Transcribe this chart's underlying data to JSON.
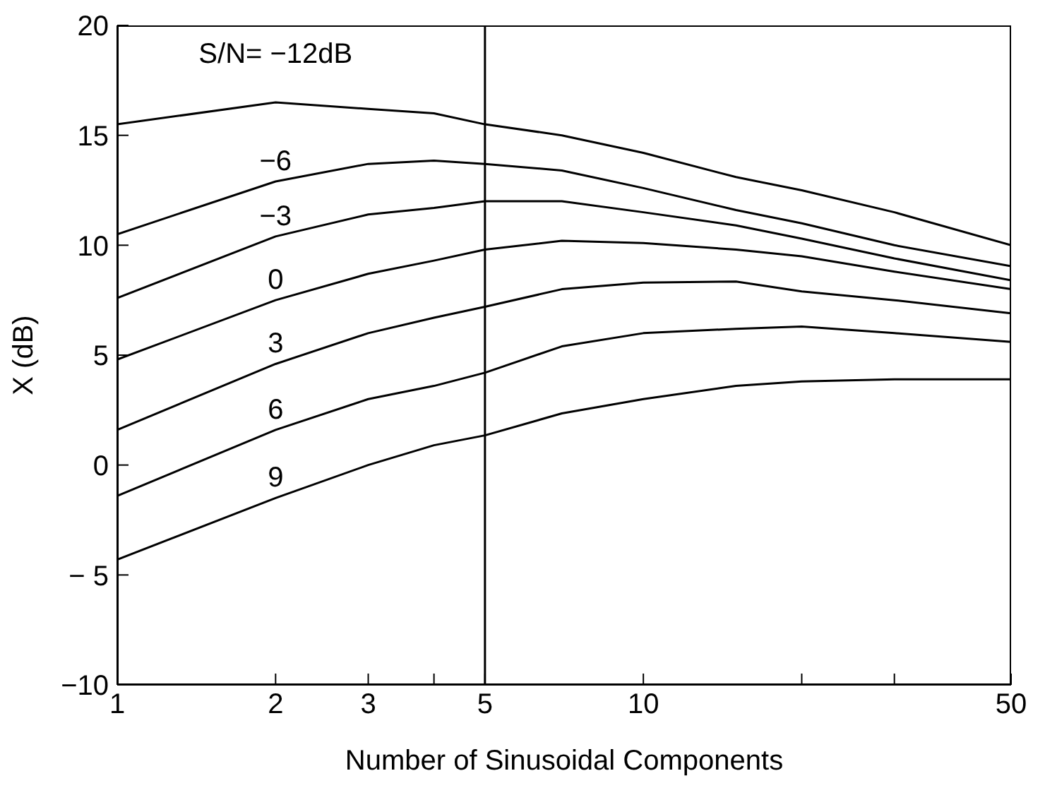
{
  "chart_data": {
    "type": "line",
    "xlabel": "Number of Sinusoidal Components",
    "ylabel": "X (dB)",
    "log": "x",
    "xlim": [
      1,
      50
    ],
    "xticks": [
      1,
      2,
      3,
      {
        "value": 4,
        "label": null
      },
      5,
      10,
      {
        "value": 20,
        "label": null
      },
      {
        "value": 30,
        "label": null
      },
      50
    ],
    "ylim": [
      -10,
      20
    ],
    "yticks": [
      {
        "value": -10,
        "label": "−10"
      },
      {
        "value": -5,
        "label": "− 5"
      },
      0,
      5,
      10,
      15,
      20
    ],
    "marker": "none",
    "line_style": "solid",
    "x": [
      1,
      2,
      3,
      4,
      5,
      7,
      10,
      15,
      20,
      30,
      50
    ],
    "ref_lines": [
      {
        "axis": "x",
        "value": 5,
        "color": "#000000"
      }
    ],
    "series": [
      {
        "name": "S/N= −12dB",
        "color": "#000000",
        "values": [
          15.5,
          16.5,
          16.2,
          16.0,
          15.5,
          15.0,
          14.2,
          13.1,
          12.5,
          11.5,
          10.0
        ]
      },
      {
        "name": "−6",
        "color": "#000000",
        "values": [
          10.5,
          12.9,
          13.7,
          13.85,
          13.7,
          13.4,
          12.6,
          11.6,
          11.0,
          10.0,
          9.05
        ]
      },
      {
        "name": "−3",
        "color": "#000000",
        "values": [
          7.6,
          10.4,
          11.4,
          11.7,
          12.0,
          12.0,
          11.5,
          10.9,
          10.3,
          9.4,
          8.4
        ]
      },
      {
        "name": "0",
        "color": "#000000",
        "values": [
          4.8,
          7.5,
          8.7,
          9.3,
          9.8,
          10.2,
          10.1,
          9.8,
          9.5,
          8.8,
          8.0
        ]
      },
      {
        "name": "3",
        "color": "#000000",
        "values": [
          1.6,
          4.6,
          6.0,
          6.7,
          7.2,
          8.0,
          8.3,
          8.35,
          7.9,
          7.5,
          6.9
        ]
      },
      {
        "name": "6",
        "color": "#000000",
        "values": [
          -1.4,
          1.6,
          3.0,
          3.6,
          4.2,
          5.4,
          6.0,
          6.2,
          6.3,
          6.0,
          5.6
        ]
      },
      {
        "name": "9",
        "color": "#000000",
        "values": [
          -4.3,
          -1.5,
          0.0,
          0.9,
          1.35,
          2.35,
          3.0,
          3.6,
          3.8,
          3.9,
          3.9
        ]
      }
    ]
  }
}
